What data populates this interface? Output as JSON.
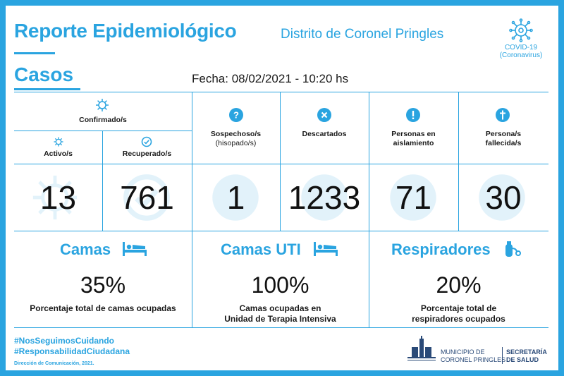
{
  "header": {
    "title": "Reporte Epidemiológico",
    "subtitle": "Distrito de Coronel Pringles",
    "badge_line1": "COVID-19",
    "badge_line2": "(Coronavirus)"
  },
  "casos": {
    "title": "Casos",
    "fecha": "Fecha: 08/02/2021 - 10:20 hs"
  },
  "stats": {
    "confirmados_label": "Confirmado/s",
    "activos_label": "Activo/s",
    "activos_value": "13",
    "recuperados_label": "Recuperado/s",
    "recuperados_value": "761",
    "sospechosos_label_1": "Sospechoso/s",
    "sospechosos_label_2": "(hisopado/s)",
    "sospechosos_value": "1",
    "descartados_label": "Descartados",
    "descartados_value": "1233",
    "aislamiento_label_1": "Personas en",
    "aislamiento_label_2": "aislamiento",
    "aislamiento_value": "71",
    "fallecidos_label_1": "Persona/s",
    "fallecidos_label_2": "fallecida/s",
    "fallecidos_value": "30"
  },
  "camas": {
    "title": "Camas",
    "percent": "35%",
    "desc_1": "Porcentaje total de camas ocupadas"
  },
  "camas_uti": {
    "title": "Camas UTI",
    "percent": "100%",
    "desc_1": "Camas ocupadas en",
    "desc_2": "Unidad de Terapia Intensiva"
  },
  "respiradores": {
    "title": "Respiradores",
    "percent": "20%",
    "desc_1": "Porcentaje total de",
    "desc_2": "respiradores ocupados"
  },
  "footer": {
    "hashtag_1": "#NosSeguimosCuidando",
    "hashtag_2": "#ResponsabilidadCiudadana",
    "credit": "Dirección de Comunicación, 2021.",
    "muni_1": "MUNICIPIO DE",
    "muni_2": "CORONEL PRINGLES",
    "secretaria_1": "SECRETARÍA",
    "secretaria_2": "DE SALUD"
  },
  "colors": {
    "accent": "#2aa4e0",
    "text": "#1a1a1a",
    "logo": "#2a4a78"
  }
}
